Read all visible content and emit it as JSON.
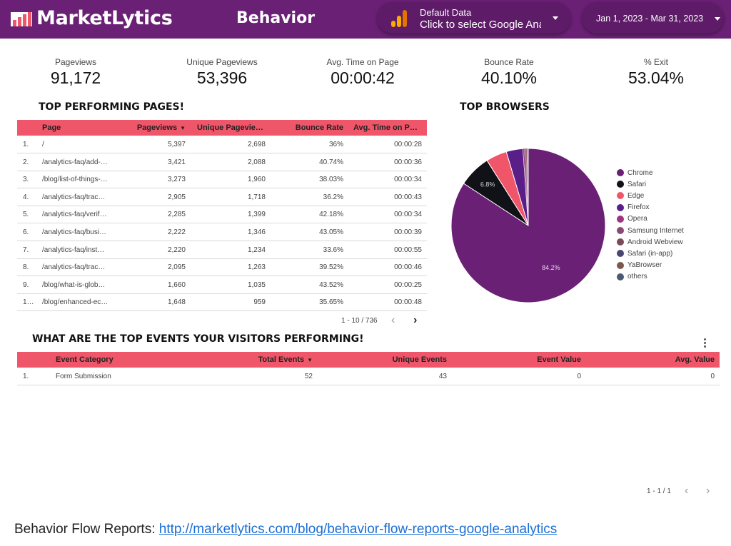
{
  "header": {
    "brand": "MarketLytics",
    "title": "Behavior",
    "data_control": {
      "label": "Default Data",
      "value": "Click to select Google Analytics view"
    },
    "date_range": "Jan 1, 2023 - Mar 31, 2023"
  },
  "scorecards": [
    {
      "label": "Pageviews",
      "value": "91,172"
    },
    {
      "label": "Unique Pageviews",
      "value": "53,396"
    },
    {
      "label": "Avg. Time on Page",
      "value": "00:00:42"
    },
    {
      "label": "Bounce Rate",
      "value": "40.10%"
    },
    {
      "label": "% Exit",
      "value": "53.04%"
    }
  ],
  "pages_table": {
    "title": "TOP PERFORMING PAGES!",
    "columns": [
      "Page",
      "Pageviews",
      "Unique Pagevie…",
      "Bounce Rate",
      "Avg. Time on P…"
    ],
    "rows": [
      [
        "1.",
        "/",
        "5,397",
        "2,698",
        "36%",
        "00:00:28"
      ],
      [
        "2.",
        "/analytics-faq/add-…",
        "3,421",
        "2,088",
        "40.74%",
        "00:00:36"
      ],
      [
        "3.",
        "/blog/list-of-things-…",
        "3,273",
        "1,960",
        "38.03%",
        "00:00:34"
      ],
      [
        "4.",
        "/analytics-faq/trac…",
        "2,905",
        "1,718",
        "36.2%",
        "00:00:43"
      ],
      [
        "5.",
        "/analytics-faq/verif…",
        "2,285",
        "1,399",
        "42.18%",
        "00:00:34"
      ],
      [
        "6.",
        "/analytics-faq/busi…",
        "2,222",
        "1,346",
        "43.05%",
        "00:00:39"
      ],
      [
        "7.",
        "/analytics-faq/inst…",
        "2,220",
        "1,234",
        "33.6%",
        "00:00:55"
      ],
      [
        "8.",
        "/analytics-faq/trac…",
        "2,095",
        "1,263",
        "39.52%",
        "00:00:46"
      ],
      [
        "9.",
        "/blog/what-is-glob…",
        "1,660",
        "1,035",
        "43.52%",
        "00:00:25"
      ],
      [
        "1…",
        "/blog/enhanced-ec…",
        "1,648",
        "959",
        "35.65%",
        "00:00:48"
      ]
    ],
    "pager": "1 - 10 / 736"
  },
  "browsers": {
    "title": "TOP BROWSERS",
    "legend": [
      {
        "name": "Chrome",
        "color": "#6a2075"
      },
      {
        "name": "Safari",
        "color": "#111118"
      },
      {
        "name": "Edge",
        "color": "#f0566a"
      },
      {
        "name": "Firefox",
        "color": "#5a1e88"
      },
      {
        "name": "Opera",
        "color": "#a0357f"
      },
      {
        "name": "Samsung Internet",
        "color": "#8a4a74"
      },
      {
        "name": "Android Webview",
        "color": "#7a4a5a"
      },
      {
        "name": "Safari (in-app)",
        "color": "#4a4670"
      },
      {
        "name": "YaBrowser",
        "color": "#7a5a4a"
      },
      {
        "name": "others",
        "color": "#4a5a70"
      }
    ]
  },
  "chart_data": {
    "type": "pie",
    "title": "TOP BROWSERS",
    "slices": [
      {
        "name": "Chrome",
        "value": 84.2,
        "label": "84.2%"
      },
      {
        "name": "Safari",
        "value": 6.8,
        "label": "6.8%"
      },
      {
        "name": "Edge",
        "value": 4.4
      },
      {
        "name": "Firefox",
        "value": 3.5
      },
      {
        "name": "Opera",
        "value": 0.3
      },
      {
        "name": "Samsung Internet",
        "value": 0.3
      },
      {
        "name": "Android Webview",
        "value": 0.2
      },
      {
        "name": "Safari (in-app)",
        "value": 0.1
      },
      {
        "name": "YaBrowser",
        "value": 0.1
      },
      {
        "name": "others",
        "value": 0.1
      }
    ],
    "legend": "right"
  },
  "events_table": {
    "title": "WHAT ARE THE TOP EVENTS YOUR VISITORS PERFORMING!",
    "columns": [
      "Event Category",
      "Total Events",
      "Unique Events",
      "Event Value",
      "Avg. Value"
    ],
    "rows": [
      [
        "1.",
        "Form Submission",
        "52",
        "43",
        "0",
        "0"
      ]
    ],
    "pager": "1 - 1 / 1"
  },
  "footer": {
    "label": "Behavior Flow Reports: ",
    "link": "http://marketlytics.com/blog/behavior-flow-reports-google-analytics"
  }
}
